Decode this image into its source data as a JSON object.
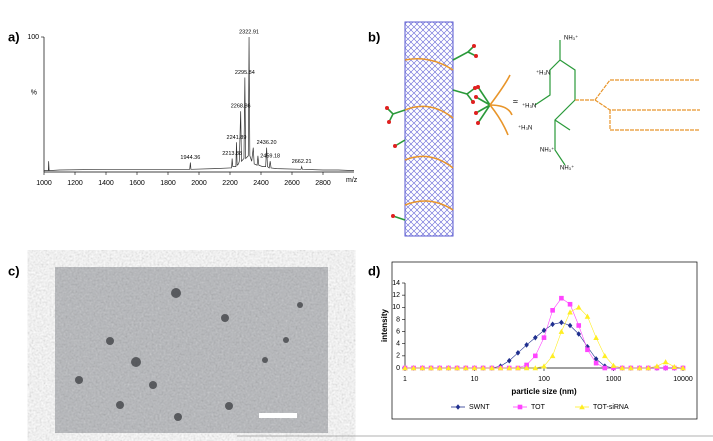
{
  "panel_labels": [
    "a)",
    "b)",
    "c)",
    "d)"
  ],
  "diagram": {
    "labels": [
      "NH₃⁺",
      "⁺H₃N",
      "⁺H₃N",
      "⁺H₃N",
      "NH₃⁺",
      "NH₃⁺",
      "≈"
    ]
  },
  "chart_data": [
    {
      "type": "line",
      "x_label": "m/z",
      "y_label": "%",
      "color": "#333333",
      "xlim": [
        1000,
        3000
      ],
      "xticks": [
        1000,
        1200,
        1400,
        1600,
        1800,
        2000,
        2200,
        2400,
        2600,
        2800
      ],
      "ylim": [
        0,
        100
      ],
      "yticks": [
        100
      ],
      "x": [
        1000,
        1028,
        1030,
        1033,
        1100,
        1400,
        1800,
        1940,
        1944.36,
        1948,
        2100,
        2200,
        2210,
        2213.88,
        2218,
        2238,
        2241.89,
        2246,
        2255,
        2260,
        2268.86,
        2274,
        2290,
        2295.84,
        2301,
        2318,
        2322.91,
        2328,
        2340,
        2350,
        2356,
        2375,
        2380,
        2386,
        2410,
        2430,
        2436.2,
        2442,
        2453,
        2459.18,
        2465,
        2500,
        2658,
        2662.21,
        2667,
        2800,
        2900,
        3000
      ],
      "values": [
        1,
        1,
        8,
        1,
        1.5,
        2,
        2,
        2,
        7,
        2,
        2.5,
        3,
        3,
        10,
        4,
        4,
        22,
        5,
        6,
        8,
        45,
        8,
        10,
        70,
        10,
        12,
        100,
        12,
        8,
        18,
        6,
        5,
        12,
        5,
        4,
        4,
        18,
        4,
        3,
        8,
        3,
        2.5,
        2,
        4,
        2,
        1.5,
        1.5,
        1
      ],
      "peak_labels": [
        {
          "value": 1944.36,
          "label": "1944.36"
        },
        {
          "value": 2213.88,
          "label": "2213.88"
        },
        {
          "value": 2241.89,
          "label": "2241.89"
        },
        {
          "value": 2268.86,
          "label": "2268.86"
        },
        {
          "value": 2295.84,
          "label": "2295.84"
        },
        {
          "value": 2322.91,
          "label": "2322.91"
        },
        {
          "value": 2436.2,
          "label": "2436.20"
        },
        {
          "value": 2459.18,
          "label": "2459.18"
        },
        {
          "value": 2662.21,
          "label": "2662.21"
        }
      ]
    },
    {
      "type": "line",
      "x_label": "particle size (nm)",
      "y_label": "intensity",
      "xscale": "log",
      "markers": true,
      "legend": "bottom",
      "xlim": [
        1,
        10000
      ],
      "xticks": [
        1,
        10,
        100,
        1000,
        10000
      ],
      "ylim": [
        0,
        14
      ],
      "yticks": [
        0,
        2,
        4,
        6,
        8,
        10,
        12,
        14
      ],
      "x": [
        1,
        1.33,
        1.78,
        2.37,
        3.16,
        4.22,
        5.62,
        7.5,
        10,
        13.3,
        17.8,
        23.7,
        31.6,
        42.2,
        56.2,
        75,
        100,
        133,
        178,
        237,
        316,
        422,
        562,
        750,
        1000,
        1334,
        1778,
        2371,
        3162,
        4217,
        5623,
        7499,
        10000
      ],
      "series": [
        {
          "name": "SWNT",
          "color": "#1f2f8f",
          "marker": "diamond",
          "values": [
            0,
            0,
            0,
            0,
            0,
            0,
            0,
            0,
            0,
            0,
            0,
            0.3,
            1.2,
            2.5,
            3.8,
            5,
            6.2,
            7.2,
            7.5,
            7,
            5.6,
            3.5,
            1.5,
            0.3,
            0,
            0,
            0,
            0,
            0,
            0,
            0,
            0,
            0
          ]
        },
        {
          "name": "TOT",
          "color": "#ff44ff",
          "marker": "square",
          "values": [
            0,
            0,
            0,
            0,
            0,
            0,
            0,
            0,
            0,
            0,
            0,
            0,
            0,
            0,
            0.5,
            2,
            5,
            9.5,
            11.5,
            10.5,
            7,
            3,
            0.8,
            0,
            0,
            0,
            0,
            0,
            0,
            0,
            0,
            0,
            0
          ]
        },
        {
          "name": "TOT-siRNA",
          "color": "#ffee22",
          "marker": "triangle",
          "values": [
            0,
            0,
            0,
            0,
            0,
            0,
            0,
            0,
            0,
            0,
            0,
            0,
            0,
            0,
            0,
            0,
            0.3,
            2,
            6,
            9.2,
            10,
            8.5,
            5,
            2,
            0.4,
            0,
            0,
            0,
            0,
            0.3,
            1,
            0.2,
            0
          ]
        }
      ]
    }
  ]
}
